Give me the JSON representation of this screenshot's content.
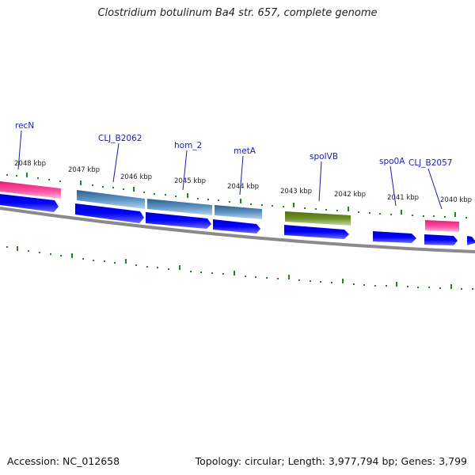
{
  "title": "Clostridium botulinum Ba4 str. 657, complete genome",
  "accession": "Accession: NC_012658",
  "summary": "Topology: circular; Length: 3,977,794 bp; Genes: 3,799",
  "ticks": [
    "2048 kbp",
    "2047 kbp",
    "2046 kbp",
    "2045 kbp",
    "2044 kbp",
    "2043 kbp",
    "2042 kbp",
    "2041 kbp",
    "2040 kbp"
  ],
  "genes": [
    {
      "name": "recN",
      "color": "#ff3399"
    },
    {
      "name": "CLJ_B2062",
      "color": "#4f86b8"
    },
    {
      "name": "hom_2",
      "color": "#4f86b8"
    },
    {
      "name": "metA",
      "color": "#4f86b8"
    },
    {
      "name": "spoIVB",
      "color": "#6b8e23"
    },
    {
      "name": "spo0A",
      "color": "#0000ff"
    },
    {
      "name": "CLJ_B2057",
      "color": "#ff3399"
    }
  ],
  "colors": {
    "cds": "#0000ff",
    "backbone": "#888888",
    "tick": "#1a8a1a",
    "label": "#1a1ab4"
  }
}
